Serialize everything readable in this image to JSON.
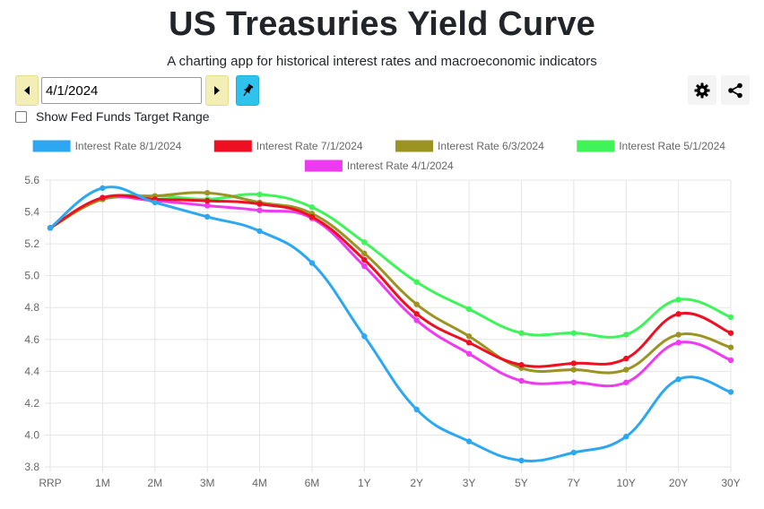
{
  "header": {
    "title": "US Treasuries Yield Curve",
    "subtitle": "A charting app for historical interest rates and macroeconomic indicators"
  },
  "toolbar": {
    "date_value": "4/1/2024",
    "prev_icon": "caret-left-icon",
    "next_icon": "caret-right-icon",
    "pin_icon": "pin-icon",
    "settings_icon": "gear-icon",
    "share_icon": "share-icon"
  },
  "options": {
    "fed_funds_label": "Show Fed Funds Target Range",
    "fed_funds_checked": false
  },
  "colors": {
    "nav_button": "#f2eeb5",
    "pin_button": "#2ec2ec"
  },
  "chart_data": {
    "type": "line",
    "title": "",
    "xlabel": "",
    "ylabel": "",
    "categories": [
      "RRP",
      "1M",
      "2M",
      "3M",
      "4M",
      "6M",
      "1Y",
      "2Y",
      "3Y",
      "5Y",
      "7Y",
      "10Y",
      "20Y",
      "30Y"
    ],
    "ylim": [
      3.8,
      5.6
    ],
    "yticks": [
      "5.6",
      "5.4",
      "5.2",
      "5.0",
      "4.8",
      "4.6",
      "4.4",
      "4.2",
      "4.0",
      "3.8"
    ],
    "grid": true,
    "legend_position": "top",
    "series": [
      {
        "name": "Interest Rate 8/1/2024",
        "color": "#2ca7f2",
        "values": [
          5.3,
          5.55,
          5.46,
          5.37,
          5.28,
          5.08,
          4.62,
          4.16,
          3.96,
          3.84,
          3.89,
          3.99,
          4.35,
          4.27
        ]
      },
      {
        "name": "Interest Rate 7/1/2024",
        "color": "#ee0f22",
        "values": [
          5.3,
          5.49,
          5.48,
          5.47,
          5.45,
          5.37,
          5.1,
          4.76,
          4.58,
          4.44,
          4.45,
          4.48,
          4.76,
          4.64
        ]
      },
      {
        "name": "Interest Rate 6/3/2024",
        "color": "#9b9322",
        "values": [
          5.3,
          5.48,
          5.5,
          5.52,
          5.46,
          5.39,
          5.14,
          4.82,
          4.62,
          4.42,
          4.41,
          4.41,
          4.63,
          4.55
        ]
      },
      {
        "name": "Interest Rate 5/1/2024",
        "color": "#3ff459",
        "values": [
          5.3,
          5.48,
          5.5,
          5.48,
          5.51,
          5.43,
          5.21,
          4.96,
          4.79,
          4.64,
          4.64,
          4.63,
          4.85,
          4.74
        ]
      },
      {
        "name": "Interest Rate 4/1/2024",
        "color": "#ee3af0",
        "values": [
          5.3,
          5.48,
          5.47,
          5.44,
          5.41,
          5.36,
          5.06,
          4.72,
          4.51,
          4.34,
          4.33,
          4.33,
          4.58,
          4.47
        ]
      }
    ]
  }
}
